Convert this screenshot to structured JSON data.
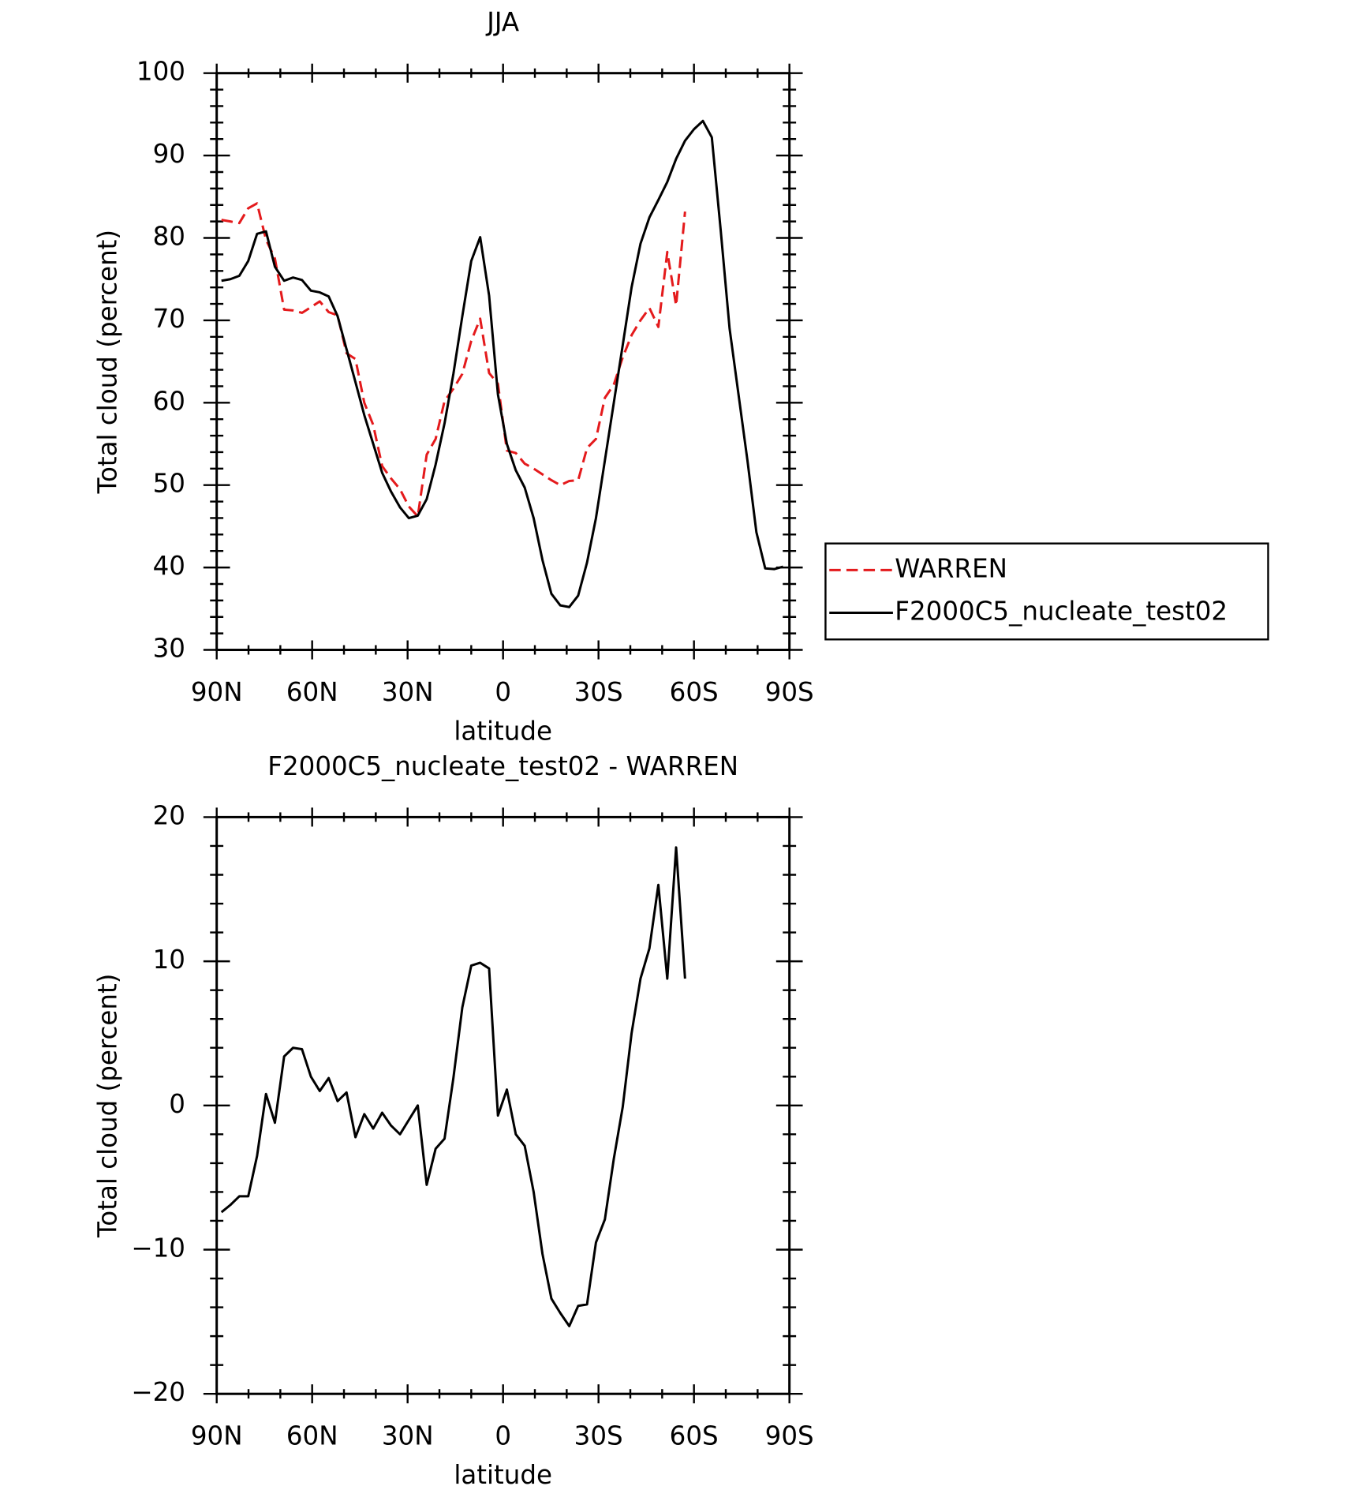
{
  "chart_data": [
    {
      "type": "line",
      "title": "JJA",
      "xlabel": "latitude",
      "ylabel": "Total cloud (percent)",
      "xlim": [
        90,
        -90
      ],
      "xticks": [
        {
          "value": 90,
          "label": "90N"
        },
        {
          "value": 60,
          "label": "60N"
        },
        {
          "value": 30,
          "label": "30N"
        },
        0,
        {
          "value": -30,
          "label": "30S"
        },
        {
          "value": -60,
          "label": "60S"
        },
        {
          "value": -90,
          "label": "90S"
        }
      ],
      "xminorticks": [
        80,
        70,
        50,
        40,
        20,
        10,
        -10,
        -20,
        -40,
        -50,
        -70,
        -80
      ],
      "ylim": [
        30,
        100
      ],
      "yticks": [
        30,
        40,
        50,
        60,
        70,
        80,
        90,
        100
      ],
      "yminorticks": [
        32,
        34,
        36,
        38,
        42,
        44,
        46,
        48,
        52,
        54,
        56,
        58,
        62,
        64,
        66,
        68,
        72,
        74,
        76,
        78,
        82,
        84,
        86,
        88,
        92,
        94,
        96,
        98
      ],
      "legend": "right",
      "series": [
        {
          "name": "WARREN",
          "color": "#e41a1c",
          "dashed": true,
          "x": [
            88.5,
            85.7,
            82.9,
            80.1,
            77.3,
            74.5,
            71.7,
            68.8,
            66.0,
            63.2,
            60.4,
            57.6,
            54.8,
            52.0,
            49.2,
            46.4,
            43.6,
            40.8,
            38.0,
            35.2,
            32.4,
            29.6,
            26.8,
            24.0,
            21.2,
            18.4,
            15.6,
            12.8,
            10.0,
            7.2,
            4.4,
            1.6,
            -1.2,
            -4.0,
            -6.8,
            -9.6,
            -12.4,
            -15.2,
            -18.0,
            -20.8,
            -23.6,
            -26.4,
            -29.2,
            -32.0,
            -34.8,
            -37.6,
            -40.4,
            -43.2,
            -46.0,
            -48.8,
            -51.6,
            -54.4,
            -57.2
          ],
          "values": [
            82.2,
            82.0,
            81.8,
            83.6,
            84.2,
            79.8,
            77.5,
            71.3,
            71.2,
            70.9,
            71.6,
            72.3,
            71.0,
            70.6,
            66.0,
            65.3,
            60.0,
            57.3,
            52.3,
            50.8,
            49.5,
            47.4,
            46.2,
            53.7,
            55.6,
            60.2,
            61.7,
            63.5,
            67.5,
            70.2,
            63.6,
            62.3,
            54.2,
            53.9,
            52.6,
            52.0,
            51.3,
            50.6,
            50.0,
            50.5,
            50.6,
            54.5,
            55.6,
            60.6,
            62.2,
            65.5,
            68.2,
            70.0,
            71.5,
            69.2,
            78.3,
            71.8,
            83.2
          ]
        },
        {
          "name": "F2000C5_nucleate_test02",
          "color": "#000000",
          "dashed": false,
          "x": [
            88.5,
            85.7,
            82.9,
            80.1,
            77.3,
            74.5,
            71.7,
            68.8,
            66.0,
            63.2,
            60.4,
            57.6,
            54.8,
            52.0,
            49.2,
            46.4,
            43.6,
            40.8,
            38.0,
            35.2,
            32.4,
            29.6,
            26.8,
            24.0,
            21.2,
            18.4,
            15.6,
            12.8,
            10.0,
            7.2,
            4.4,
            1.6,
            -1.2,
            -4.0,
            -6.8,
            -9.6,
            -12.4,
            -15.2,
            -18.0,
            -20.8,
            -23.6,
            -26.4,
            -29.2,
            -32.0,
            -34.8,
            -37.6,
            -40.4,
            -43.2,
            -46.0,
            -48.8,
            -51.6,
            -54.4,
            -57.2,
            -60.0,
            -62.8,
            -65.6,
            -68.4,
            -71.2,
            -74.0,
            -76.8,
            -79.6,
            -82.4,
            -85.2,
            -88.0
          ],
          "values": [
            74.8,
            75.0,
            75.4,
            77.2,
            80.5,
            80.8,
            76.5,
            74.8,
            75.2,
            74.9,
            73.6,
            73.4,
            72.9,
            70.5,
            66.5,
            62.5,
            58.5,
            55.0,
            51.5,
            49.2,
            47.3,
            46.0,
            46.3,
            48.3,
            52.5,
            57.5,
            63.5,
            70.5,
            77.2,
            80.1,
            73.0,
            61.0,
            55.0,
            51.8,
            49.7,
            46.0,
            40.9,
            36.8,
            35.4,
            35.2,
            36.6,
            40.6,
            46.0,
            53.0,
            60.0,
            67.0,
            74.0,
            79.3,
            82.5,
            84.6,
            86.8,
            89.6,
            91.8,
            93.2,
            94.2,
            92.2,
            81.0,
            69.0,
            61.0,
            53.0,
            44.3,
            39.9,
            39.8,
            40.1
          ]
        }
      ]
    },
    {
      "type": "line",
      "title": "F2000C5_nucleate_test02 - WARREN",
      "xlabel": "latitude",
      "ylabel": "Total cloud (percent)",
      "xlim": [
        90,
        -90
      ],
      "xticks": [
        {
          "value": 90,
          "label": "90N"
        },
        {
          "value": 60,
          "label": "60N"
        },
        {
          "value": 30,
          "label": "30N"
        },
        0,
        {
          "value": -30,
          "label": "30S"
        },
        {
          "value": -60,
          "label": "60S"
        },
        {
          "value": -90,
          "label": "90S"
        }
      ],
      "xminorticks": [
        80,
        70,
        50,
        40,
        20,
        10,
        -10,
        -20,
        -40,
        -50,
        -70,
        -80
      ],
      "ylim": [
        -20,
        20
      ],
      "yticks": [
        {
          "value": -20,
          "label": "−20"
        },
        {
          "value": -10,
          "label": "−10"
        },
        0,
        10,
        20
      ],
      "yminorticks": [
        -18,
        -16,
        -14,
        -12,
        -8,
        -6,
        -4,
        -2,
        2,
        4,
        6,
        8,
        12,
        14,
        16,
        18
      ],
      "series": [
        {
          "color": "#000000",
          "dashed": false,
          "x": [
            88.5,
            85.7,
            82.9,
            80.1,
            77.3,
            74.5,
            71.7,
            68.8,
            66.0,
            63.2,
            60.4,
            57.6,
            54.8,
            52.0,
            49.2,
            46.4,
            43.6,
            40.8,
            38.0,
            35.2,
            32.4,
            29.6,
            26.8,
            24.0,
            21.2,
            18.4,
            15.6,
            12.8,
            10.0,
            7.2,
            4.4,
            1.6,
            -1.2,
            -4.0,
            -6.8,
            -9.6,
            -12.4,
            -15.2,
            -18.0,
            -20.8,
            -23.6,
            -26.4,
            -29.2,
            -32.0,
            -34.8,
            -37.6,
            -40.4,
            -43.2,
            -46.0,
            -48.8,
            -51.6,
            -54.4,
            -57.2
          ],
          "values": [
            -7.4,
            -6.9,
            -6.3,
            -6.3,
            -3.5,
            0.8,
            -1.2,
            3.4,
            4.0,
            3.9,
            2.0,
            1.0,
            1.9,
            0.3,
            0.9,
            -2.2,
            -0.6,
            -1.6,
            -0.5,
            -1.4,
            -2.0,
            -1.0,
            0.0,
            -5.5,
            -3.0,
            -2.3,
            1.9,
            6.8,
            9.7,
            9.9,
            9.5,
            -0.7,
            1.1,
            -2.0,
            -2.8,
            -6.0,
            -10.3,
            -13.4,
            -14.4,
            -15.3,
            -13.9,
            -13.8,
            -9.5,
            -7.9,
            -3.7,
            -0.1,
            5.0,
            8.8,
            10.9,
            15.3,
            8.8,
            17.9,
            8.8
          ]
        }
      ]
    }
  ]
}
